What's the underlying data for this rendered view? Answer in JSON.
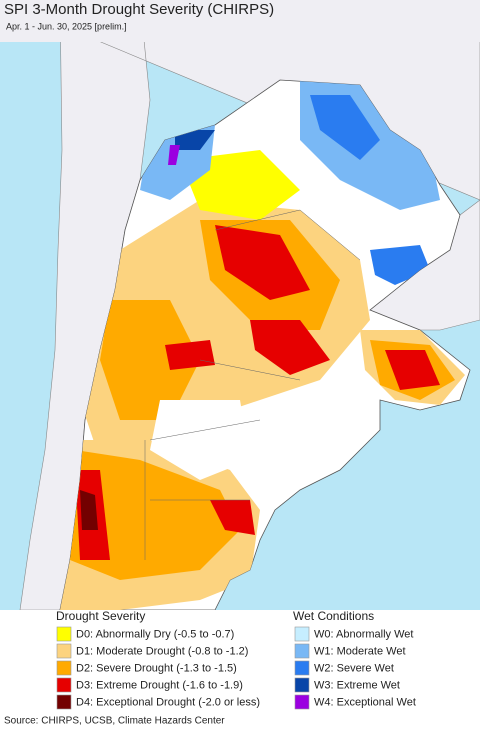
{
  "title": "SPI 3-Month Drought Severity (CHIRPS)",
  "subtitle": "Apr. 1 - Jun. 30, 2025 [prelim.]",
  "legend": {
    "drought": {
      "title": "Drought Severity",
      "items": [
        {
          "label": "D0: Abnormally Dry (-0.5 to -0.7)",
          "color": "#ffff00"
        },
        {
          "label": "D1: Moderate Drought (-0.8 to -1.2)",
          "color": "#fcd37f"
        },
        {
          "label": "D2: Severe Drought (-1.3 to -1.5)",
          "color": "#ffaa00"
        },
        {
          "label": "D3: Extreme Drought (-1.6 to -1.9)",
          "color": "#e60000"
        },
        {
          "label": "D4: Exceptional Drought (-2.0 or less)",
          "color": "#730000"
        }
      ]
    },
    "wet": {
      "title": "Wet Conditions",
      "items": [
        {
          "label": "W0: Abnormally Wet",
          "color": "#c6eeff"
        },
        {
          "label": "W1: Moderate Wet",
          "color": "#79b8f5"
        },
        {
          "label": "W2: Severe Wet",
          "color": "#2a7cf0"
        },
        {
          "label": "W3: Extreme Wet",
          "color": "#0845a8"
        },
        {
          "label": "W4: Exceptional Wet",
          "color": "#9b00e0"
        }
      ]
    }
  },
  "source": "Source: CHIRPS, UCSB, Climate Hazards Center"
}
